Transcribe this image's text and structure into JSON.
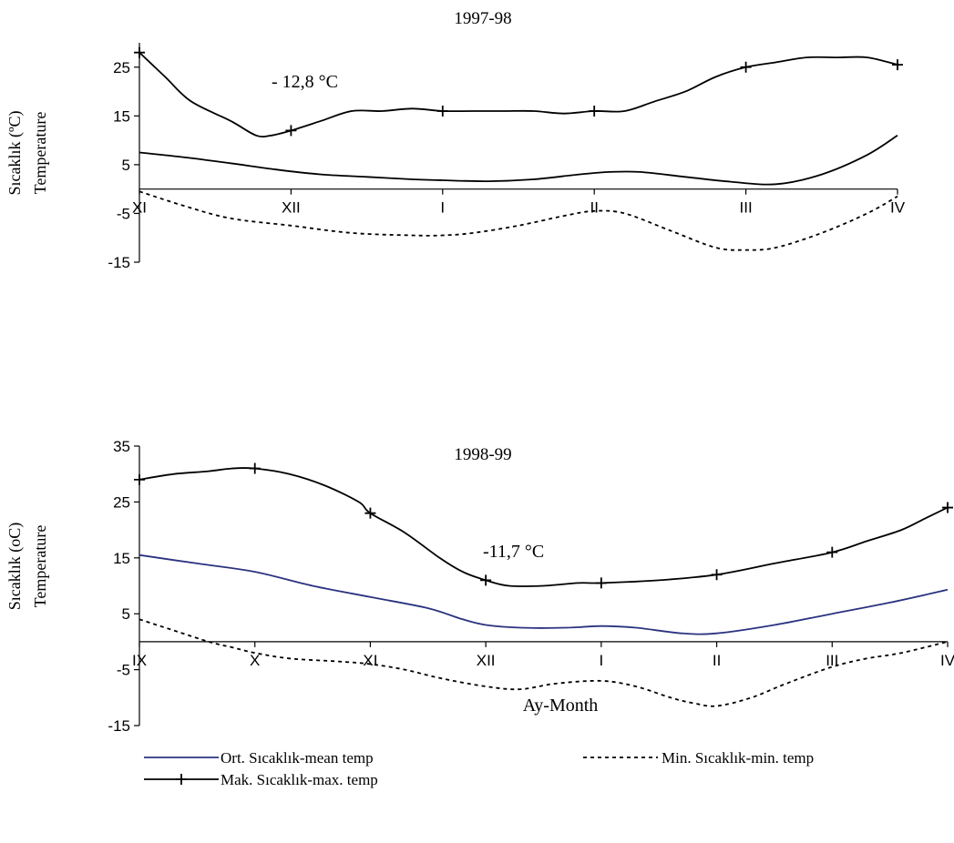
{
  "figure": {
    "xlabel": "Ay-Month"
  },
  "legend": {
    "mean_label": "Ort. Sıcaklık-mean temp",
    "min_label": "Min. Sıcaklık-min. temp",
    "max_label": "Mak. Sıcaklık-max. temp"
  },
  "chart_data": [
    {
      "type": "line",
      "title": "1997-98",
      "ylabel": "Sıcaklık (ºC)",
      "ylabel2": "Temperature",
      "annotation": "- 12,8 °C",
      "ylim": [
        -15,
        30
      ],
      "yticks": [
        -15,
        -5,
        5,
        15,
        25
      ],
      "categories": [
        "XI",
        "XII",
        "I",
        "II",
        "III",
        "IV"
      ],
      "grid": false,
      "legend_position": "bottom",
      "series": [
        {
          "key": "max",
          "name": "Mak. Sıcaklık-max. temp",
          "color": "#000000",
          "style": "solid-plus",
          "x": [
            0,
            0.17,
            0.34,
            0.6,
            0.77,
            0.87,
            1.0,
            1.2,
            1.4,
            1.6,
            1.8,
            2.0,
            2.2,
            2.4,
            2.6,
            2.8,
            3.0,
            3.2,
            3.4,
            3.6,
            3.8,
            4.0,
            4.2,
            4.4,
            4.6,
            4.8,
            5.0
          ],
          "values": [
            28,
            23,
            18,
            14,
            11,
            11,
            12,
            14,
            16,
            16,
            16.5,
            16,
            16,
            16,
            16,
            15.5,
            16,
            16,
            18,
            20,
            23,
            25,
            26,
            27,
            27,
            27,
            25.5
          ]
        },
        {
          "key": "mean",
          "name": "Ort. Sıcaklık-mean temp",
          "color": "#000000",
          "style": "solid",
          "x": [
            0,
            0.3,
            0.6,
            0.9,
            1.2,
            1.5,
            1.8,
            2.0,
            2.3,
            2.6,
            2.9,
            3.1,
            3.3,
            3.6,
            3.9,
            4.2,
            4.5,
            4.8,
            5.0
          ],
          "values": [
            7.5,
            6.5,
            5.3,
            4,
            3,
            2.5,
            2,
            1.8,
            1.6,
            2,
            3,
            3.5,
            3.5,
            2.5,
            1.5,
            1,
            3,
            7,
            11
          ]
        },
        {
          "key": "min",
          "name": "Min. Sıcaklık-min. temp",
          "color": "#000000",
          "style": "dashed",
          "x": [
            0,
            0.3,
            0.6,
            1.0,
            1.4,
            1.8,
            2.0,
            2.2,
            2.5,
            2.8,
            3.0,
            3.2,
            3.5,
            3.8,
            4.0,
            4.2,
            4.5,
            4.8,
            5.0
          ],
          "values": [
            -0.5,
            -3.5,
            -6,
            -7.5,
            -9,
            -9.5,
            -9.5,
            -9,
            -7.5,
            -5.5,
            -4.5,
            -5,
            -8.5,
            -12,
            -12.5,
            -12,
            -9,
            -5,
            -1.5
          ]
        }
      ]
    },
    {
      "type": "line",
      "title": "1998-99",
      "ylabel": "Sıcaklık (oC)",
      "ylabel2": "Temperature",
      "annotation": "-11,7 °C",
      "ylim": [
        -15,
        35
      ],
      "yticks": [
        -15,
        -5,
        5,
        15,
        25,
        35
      ],
      "categories": [
        "IX",
        "X",
        "XI",
        "XII",
        "I",
        "II",
        "III",
        "IV"
      ],
      "grid": false,
      "legend_position": "bottom",
      "series": [
        {
          "key": "max",
          "name": "Mak. Sıcaklık-max. temp",
          "color": "#000000",
          "style": "solid-plus",
          "x": [
            0,
            0.3,
            0.6,
            0.8,
            1.0,
            1.3,
            1.6,
            1.9,
            2.0,
            2.3,
            2.6,
            2.8,
            3.0,
            3.2,
            3.5,
            3.8,
            4.0,
            4.5,
            5.0,
            5.5,
            6.0,
            6.3,
            6.6,
            6.8,
            7.0
          ],
          "values": [
            29,
            30,
            30.5,
            31,
            31,
            30,
            28,
            25,
            23,
            19.5,
            15,
            12.5,
            11,
            10,
            10,
            10.5,
            10.5,
            11,
            12,
            14,
            16,
            18,
            20,
            22,
            24
          ]
        },
        {
          "key": "mean",
          "name": "Ort. Sıcaklık-mean temp",
          "color": "#2b3380",
          "style": "solid",
          "x": [
            0,
            0.5,
            1.0,
            1.5,
            2.0,
            2.5,
            2.8,
            3.0,
            3.3,
            3.7,
            4.0,
            4.3,
            4.7,
            5.0,
            5.5,
            6.0,
            6.5,
            7.0
          ],
          "values": [
            15.5,
            14,
            12.5,
            10,
            8,
            6,
            4,
            3,
            2.5,
            2.5,
            2.8,
            2.5,
            1.5,
            1.5,
            3,
            5,
            7,
            9.3
          ]
        },
        {
          "key": "min",
          "name": "Min. Sıcaklık-min. temp",
          "color": "#000000",
          "style": "dashed",
          "x": [
            0,
            0.3,
            0.6,
            0.8,
            1.0,
            1.3,
            1.7,
            2.0,
            2.3,
            2.6,
            3.0,
            3.3,
            3.6,
            4.0,
            4.3,
            4.6,
            4.8,
            5.0,
            5.3,
            5.6,
            6.0,
            6.3,
            6.6,
            7.0
          ],
          "values": [
            4,
            2,
            0,
            -1,
            -2,
            -3,
            -3.5,
            -4,
            -5,
            -6.5,
            -8,
            -8.5,
            -7.5,
            -7,
            -8,
            -10,
            -11,
            -11.5,
            -10,
            -7.5,
            -4.5,
            -3,
            -2,
            0
          ]
        }
      ]
    }
  ]
}
